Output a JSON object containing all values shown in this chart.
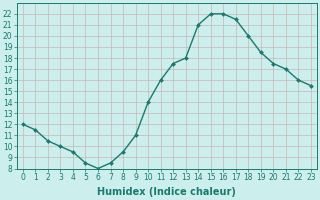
{
  "x": [
    0,
    1,
    2,
    3,
    4,
    5,
    6,
    7,
    8,
    9,
    10,
    11,
    12,
    13,
    14,
    15,
    16,
    17,
    18,
    19,
    20,
    21,
    22,
    23
  ],
  "y": [
    12,
    11.5,
    10.5,
    10,
    9.5,
    8.5,
    8,
    8.5,
    9.5,
    11,
    14,
    16,
    17.5,
    18,
    21,
    22,
    22,
    21.5,
    20,
    18.5,
    17.5,
    17,
    16,
    15.5
  ],
  "line_color": "#1a7a6e",
  "marker_color": "#1a7a6e",
  "bg_color": "#cceeed",
  "grid_color": "#b8dedd",
  "xlabel": "Humidex (Indice chaleur)",
  "ylim": [
    8,
    23
  ],
  "xlim_min": -0.5,
  "xlim_max": 23.5,
  "yticks": [
    8,
    9,
    10,
    11,
    12,
    13,
    14,
    15,
    16,
    17,
    18,
    19,
    20,
    21,
    22
  ],
  "xticks": [
    0,
    1,
    2,
    3,
    4,
    5,
    6,
    7,
    8,
    9,
    10,
    11,
    12,
    13,
    14,
    15,
    16,
    17,
    18,
    19,
    20,
    21,
    22,
    23
  ],
  "tick_fontsize": 5.5,
  "label_fontsize": 7,
  "line_width": 1.0,
  "marker_size": 2.0
}
